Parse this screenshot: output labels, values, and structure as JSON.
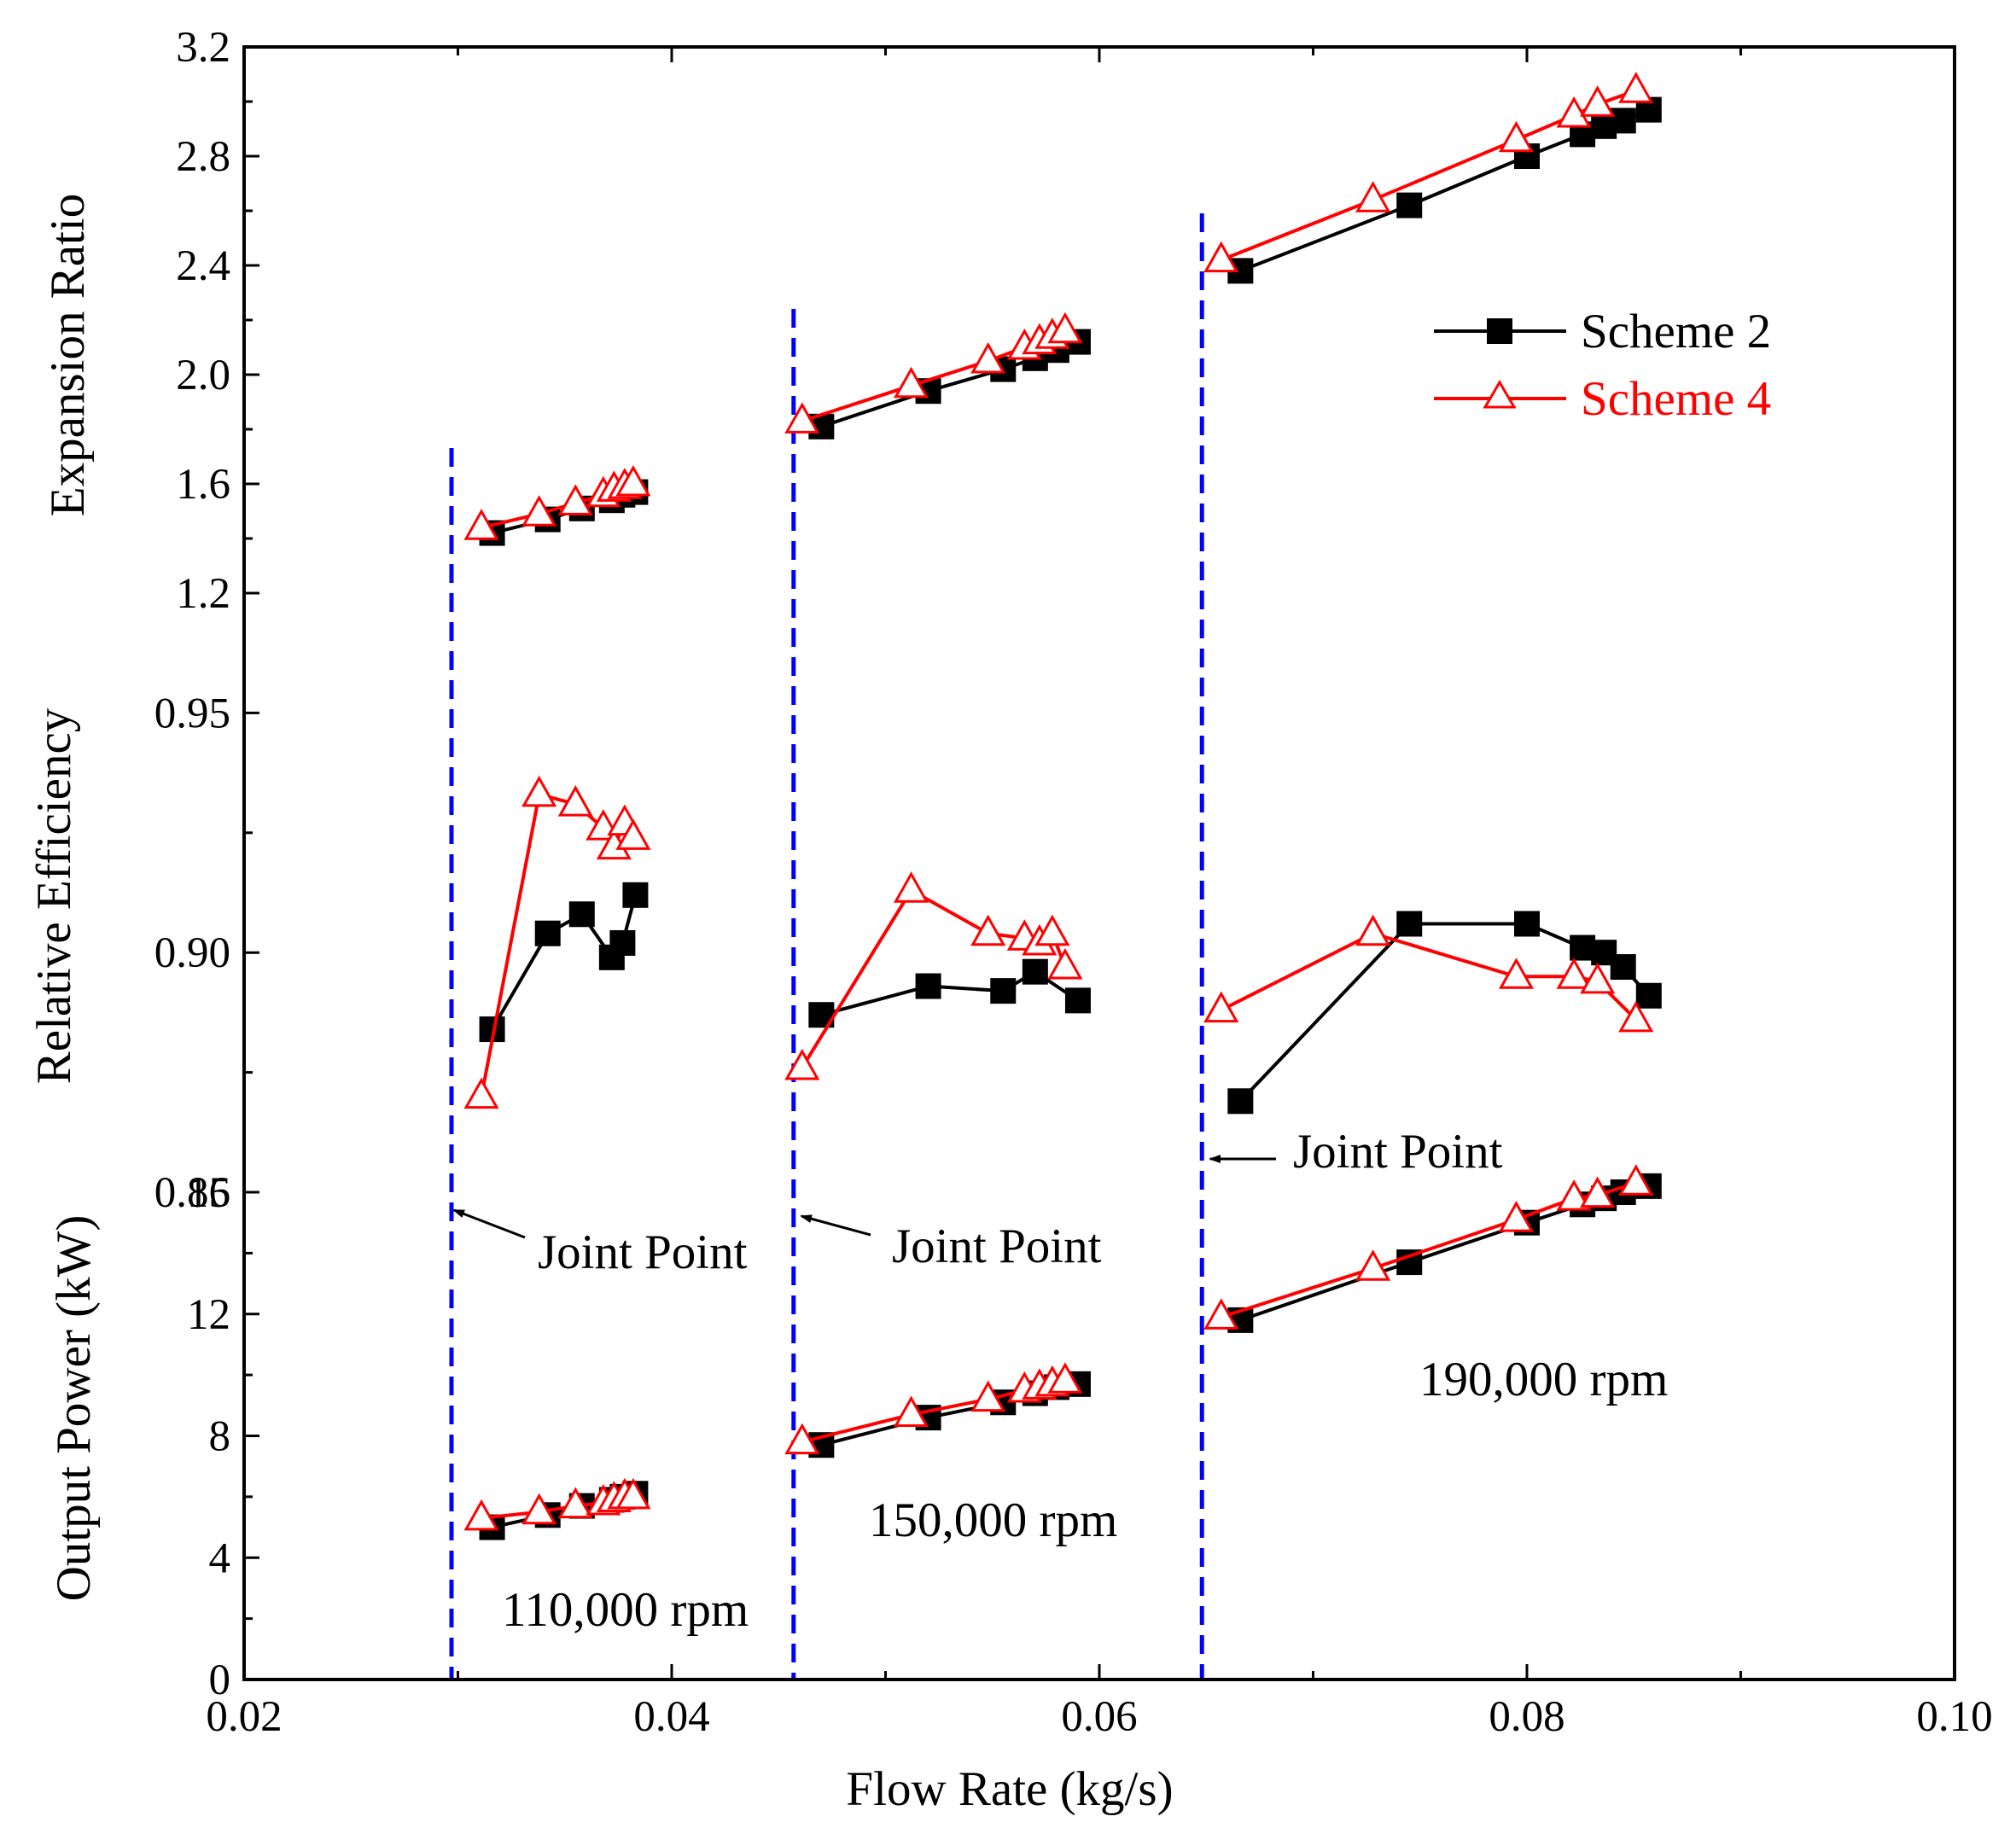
{
  "chart_data": {
    "type": "line",
    "x_axis": {
      "label": "Flow Rate (kg/s)",
      "range": [
        0.02,
        0.1
      ],
      "ticks": [
        "0.02",
        "0.04",
        "0.06",
        "0.08",
        "0.10"
      ],
      "tick_values": [
        0.02,
        0.04,
        0.06,
        0.08,
        0.1
      ]
    },
    "panels": [
      {
        "id": "expansion",
        "ylabel": "Expansion Ratio",
        "ylim": [
          1.2,
          3.2
        ],
        "tick_labels": [
          "1.2",
          "1.6",
          "2.0",
          "2.4",
          "2.8",
          "3.2"
        ],
        "tick_values": [
          1.2,
          1.6,
          2.0,
          2.4,
          2.8,
          3.2
        ],
        "series": [
          {
            "name": "Scheme 2",
            "groups": [
              {
                "x": [
                  0.0316,
                  0.0342,
                  0.0358,
                  0.0372,
                  0.0377,
                  0.0383
                ],
                "y": [
                  1.42,
                  1.47,
                  1.51,
                  1.54,
                  1.56,
                  1.57
                ]
              },
              {
                "x": [
                  0.047,
                  0.052,
                  0.0555,
                  0.057,
                  0.058,
                  0.059
                ],
                "y": [
                  1.81,
                  1.94,
                  2.02,
                  2.06,
                  2.09,
                  2.12
                ]
              },
              {
                "x": [
                  0.0666,
                  0.0745,
                  0.08,
                  0.0826,
                  0.0836,
                  0.0845,
                  0.0857
                ],
                "y": [
                  2.38,
                  2.62,
                  2.8,
                  2.88,
                  2.91,
                  2.93,
                  2.97
                ]
              }
            ]
          },
          {
            "name": "Scheme 4",
            "groups": [
              {
                "x": [
                  0.0311,
                  0.0338,
                  0.0355,
                  0.0368,
                  0.0373,
                  0.0378,
                  0.0382
                ],
                "y": [
                  1.44,
                  1.49,
                  1.53,
                  1.56,
                  1.58,
                  1.59,
                  1.6
                ]
              },
              {
                "x": [
                  0.0461,
                  0.0512,
                  0.0548,
                  0.0565,
                  0.0572,
                  0.0578,
                  0.0584
                ],
                "y": [
                  1.83,
                  1.96,
                  2.05,
                  2.1,
                  2.12,
                  2.14,
                  2.16
                ]
              },
              {
                "x": [
                  0.0657,
                  0.0728,
                  0.0795,
                  0.0822,
                  0.0833,
                  0.0851
                ],
                "y": [
                  2.42,
                  2.64,
                  2.86,
                  2.95,
                  2.99,
                  3.04
                ]
              }
            ]
          }
        ]
      },
      {
        "id": "efficiency",
        "ylabel": "Relative Efficiency",
        "ylim": [
          0.85,
          0.975
        ],
        "tick_labels": [
          "0.85",
          "0.90",
          "0.95"
        ],
        "tick_values": [
          0.85,
          0.9,
          0.95
        ],
        "series": [
          {
            "name": "Scheme 2",
            "groups": [
              {
                "x": [
                  0.0316,
                  0.0342,
                  0.0358,
                  0.0372,
                  0.0377,
                  0.0383
                ],
                "y": [
                  0.884,
                  0.904,
                  0.908,
                  0.899,
                  0.902,
                  0.912
                ]
              },
              {
                "x": [
                  0.047,
                  0.052,
                  0.0555,
                  0.057,
                  0.059
                ],
                "y": [
                  0.887,
                  0.893,
                  0.892,
                  0.896,
                  0.89
                ]
              },
              {
                "x": [
                  0.0666,
                  0.0745,
                  0.08,
                  0.0826,
                  0.0836,
                  0.0845,
                  0.0857
                ],
                "y": [
                  0.869,
                  0.906,
                  0.906,
                  0.901,
                  0.9,
                  0.897,
                  0.891
                ]
              }
            ]
          },
          {
            "name": "Scheme 4",
            "groups": [
              {
                "x": [
                  0.0311,
                  0.0338,
                  0.0355,
                  0.0368,
                  0.0373,
                  0.0378,
                  0.0382
                ],
                "y": [
                  0.87,
                  0.933,
                  0.931,
                  0.926,
                  0.922,
                  0.927,
                  0.924
                ]
              },
              {
                "x": [
                  0.0461,
                  0.0512,
                  0.0548,
                  0.0565,
                  0.0572,
                  0.0578,
                  0.0584
                ],
                "y": [
                  0.876,
                  0.913,
                  0.904,
                  0.903,
                  0.902,
                  0.904,
                  0.897
                ]
              },
              {
                "x": [
                  0.0657,
                  0.0728,
                  0.0795,
                  0.0822,
                  0.0833,
                  0.0851
                ],
                "y": [
                  0.888,
                  0.904,
                  0.895,
                  0.895,
                  0.894,
                  0.886
                ]
              }
            ]
          }
        ]
      },
      {
        "id": "power",
        "ylabel": "Output Power (kW)",
        "ylim": [
          0,
          16
        ],
        "tick_labels": [
          "0",
          "4",
          "8",
          "12",
          "16"
        ],
        "tick_values": [
          0,
          4,
          8,
          12,
          16
        ],
        "series": [
          {
            "name": "Scheme 2",
            "groups": [
              {
                "x": [
                  0.0316,
                  0.0342,
                  0.0358,
                  0.0372,
                  0.0377,
                  0.0383
                ],
                "y": [
                  5.0,
                  5.4,
                  5.7,
                  5.9,
                  6.0,
                  6.1
                ]
              },
              {
                "x": [
                  0.047,
                  0.052,
                  0.0555,
                  0.057,
                  0.058,
                  0.059
                ],
                "y": [
                  7.7,
                  8.6,
                  9.1,
                  9.4,
                  9.6,
                  9.7
                ]
              },
              {
                "x": [
                  0.0666,
                  0.0745,
                  0.08,
                  0.0826,
                  0.0836,
                  0.0845,
                  0.0857
                ],
                "y": [
                  11.8,
                  13.7,
                  15.0,
                  15.6,
                  15.8,
                  16.0,
                  16.2
                ]
              }
            ]
          },
          {
            "name": "Scheme 4",
            "groups": [
              {
                "x": [
                  0.0311,
                  0.0338,
                  0.0355,
                  0.0368,
                  0.0373,
                  0.0378,
                  0.0382
                ],
                "y": [
                  5.3,
                  5.5,
                  5.7,
                  5.8,
                  5.9,
                  6.0,
                  6.0
                ]
              },
              {
                "x": [
                  0.0461,
                  0.0512,
                  0.0548,
                  0.0565,
                  0.0572,
                  0.0578,
                  0.0584
                ],
                "y": [
                  7.8,
                  8.7,
                  9.2,
                  9.5,
                  9.6,
                  9.7,
                  9.8
                ]
              },
              {
                "x": [
                  0.0657,
                  0.0728,
                  0.0795,
                  0.0822,
                  0.0833,
                  0.0851
                ],
                "y": [
                  11.9,
                  13.5,
                  15.1,
                  15.8,
                  15.9,
                  16.3
                ]
              }
            ]
          }
        ]
      }
    ],
    "series_styles": [
      {
        "name": "Scheme 2",
        "color": "#000000",
        "marker": "filled-square"
      },
      {
        "name": "Scheme 4",
        "color": "#ff0000",
        "marker": "open-triangle"
      }
    ],
    "joint_lines": {
      "color": "#0000ff",
      "style": "dashed",
      "x": [
        0.0297,
        0.0457,
        0.0648
      ]
    },
    "annotations": {
      "joint_point_label": "Joint Point",
      "speed_labels": [
        "110,000 rpm",
        "150,000 rpm",
        "190,000 rpm"
      ]
    },
    "legend": {
      "position": "top-right",
      "entries": [
        "Scheme 2",
        "Scheme 4"
      ]
    }
  }
}
